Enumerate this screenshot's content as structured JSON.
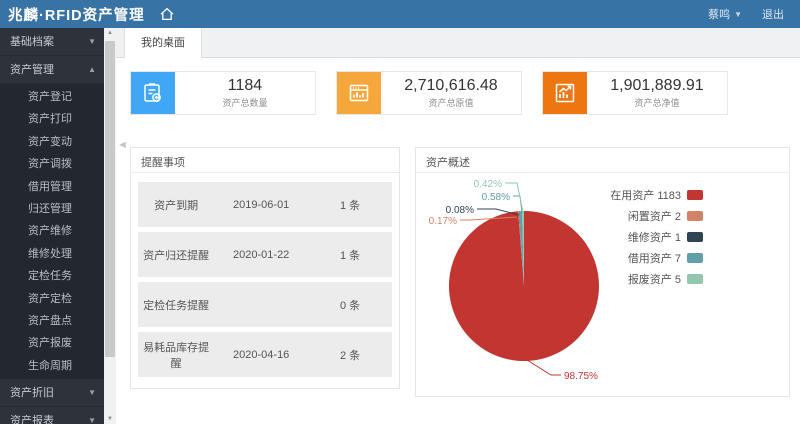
{
  "header": {
    "app_title": "兆麟·RFID资产管理",
    "user_name": "蔡鸣",
    "logout_label": "退出"
  },
  "sidebar": {
    "groups": [
      {
        "label": "基础档案",
        "state": "collapsed"
      },
      {
        "label": "资产管理",
        "state": "expanded",
        "children": [
          "资产登记",
          "资产打印",
          "资产变动",
          "资产调拨",
          "借用管理",
          "归还管理",
          "资产维修",
          "维修处理",
          "定检任务",
          "资产定检",
          "资产盘点",
          "资产报废",
          "生命周期"
        ]
      },
      {
        "label": "资产折旧",
        "state": "collapsed"
      },
      {
        "label": "资产报表",
        "state": "collapsed"
      }
    ]
  },
  "tabs": {
    "active": "我的桌面"
  },
  "stats": [
    {
      "value": "1184",
      "label": "资产总数量",
      "icon": "clipboard-plus-icon",
      "color": "#3fa7f5"
    },
    {
      "value": "2,710,616.48",
      "label": "资产总原值",
      "icon": "window-chart-icon",
      "color": "#f5a73c"
    },
    {
      "value": "1,901,889.91",
      "label": "资产总净值",
      "icon": "chart-growth-icon",
      "color": "#ee7611"
    }
  ],
  "reminders": {
    "title": "提醒事项",
    "rows": [
      {
        "name": "资产到期",
        "date": "2019-06-01",
        "count": "1 条"
      },
      {
        "name": "资产归还提醒",
        "date": "2020-01-22",
        "count": "1 条"
      },
      {
        "name": "定检任务提醒",
        "date": "",
        "count": "0 条"
      },
      {
        "name": "易耗品库存提醒",
        "date": "2020-04-16",
        "count": "2 条"
      }
    ]
  },
  "overview": {
    "title": "资产概述"
  },
  "chart_data": {
    "type": "pie",
    "title": "资产概述",
    "legend_position": "right",
    "total": 1198,
    "series": [
      {
        "name": "在用资产",
        "value": 1183,
        "percent": "98.75%",
        "color": "#c23531"
      },
      {
        "name": "闲置资产",
        "value": 2,
        "percent": "0.17%",
        "color": "#d48265"
      },
      {
        "name": "维修资产",
        "value": 1,
        "percent": "0.08%",
        "color": "#2f4554"
      },
      {
        "name": "借用资产",
        "value": 7,
        "percent": "0.58%",
        "color": "#61a0a8"
      },
      {
        "name": "报废资产",
        "value": 5,
        "percent": "0.42%",
        "color": "#91c7ae"
      }
    ]
  }
}
